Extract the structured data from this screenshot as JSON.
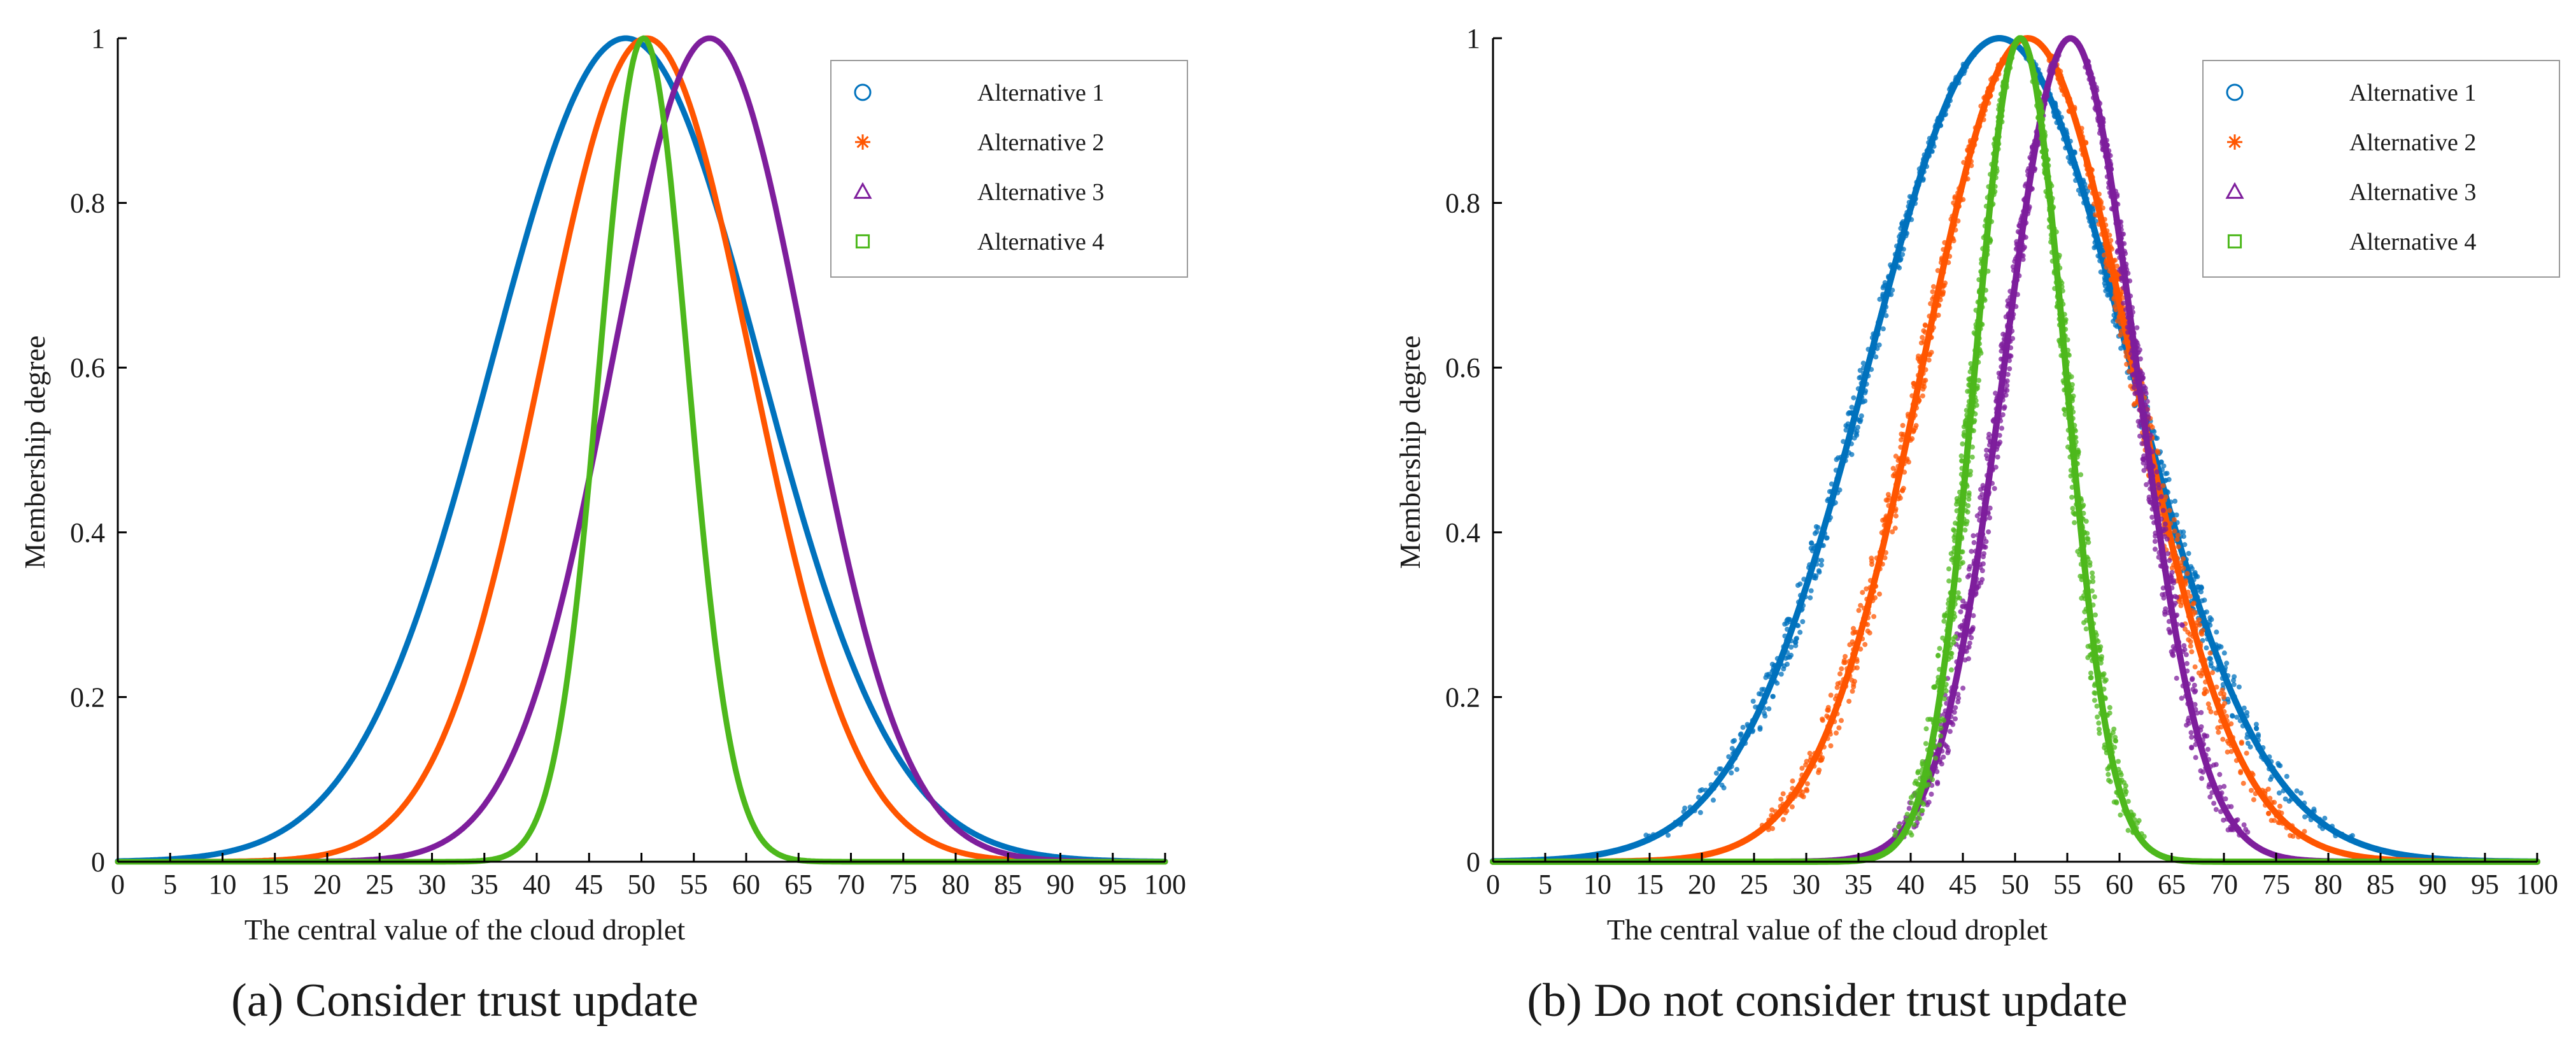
{
  "chart_data": [
    {
      "type": "scatter",
      "panel": "a",
      "caption": "(a) Consider trust update",
      "xlabel": "The central value of the cloud droplet",
      "ylabel": "Membership degree",
      "xlim": [
        0,
        100
      ],
      "ylim": [
        0,
        1
      ],
      "xticks": [
        "0",
        "5",
        "10",
        "15",
        "20",
        "25",
        "30",
        "35",
        "40",
        "45",
        "50",
        "55",
        "60",
        "65",
        "70",
        "75",
        "80",
        "85",
        "90",
        "95",
        "100"
      ],
      "yticks": [
        "0",
        "0.2",
        "0.4",
        "0.6",
        "0.8",
        "1"
      ],
      "legend_position": "top-right",
      "series": [
        {
          "name": "Alternative 1",
          "marker": "circle",
          "color": "#0072BD",
          "peak_x": 48.5,
          "spread": 12.8,
          "noise": 0
        },
        {
          "name": "Alternative 2",
          "marker": "star",
          "color": "#FF5500",
          "peak_x": 50.5,
          "spread": 10.0,
          "noise": 0
        },
        {
          "name": "Alternative 3",
          "marker": "triangle",
          "color": "#7E1E9C",
          "peak_x": 56.5,
          "spread": 9.3,
          "noise": 0
        },
        {
          "name": "Alternative 4",
          "marker": "square",
          "color": "#4DB81C",
          "peak_x": 50.2,
          "spread": 4.2,
          "noise": 0
        }
      ]
    },
    {
      "type": "scatter",
      "panel": "b",
      "caption": "(b) Do not consider trust update",
      "xlabel": "The central value of the cloud droplet",
      "ylabel": "Membership degree",
      "xlim": [
        0,
        100
      ],
      "ylim": [
        0,
        1
      ],
      "xticks": [
        "0",
        "5",
        "10",
        "15",
        "20",
        "25",
        "30",
        "35",
        "40",
        "45",
        "50",
        "55",
        "60",
        "65",
        "70",
        "75",
        "80",
        "85",
        "90",
        "95",
        "100"
      ],
      "yticks": [
        "0",
        "0.2",
        "0.4",
        "0.6",
        "0.8",
        "1"
      ],
      "legend_position": "top-right",
      "series": [
        {
          "name": "Alternative 1",
          "marker": "circle",
          "color": "#0072BD",
          "peak_x": 48.5,
          "spread": 12.5,
          "noise": 0.9
        },
        {
          "name": "Alternative 2",
          "marker": "star",
          "color": "#FF5500",
          "peak_x": 51.2,
          "spread": 10.0,
          "noise": 0.9
        },
        {
          "name": "Alternative 3",
          "marker": "triangle",
          "color": "#7E1E9C",
          "peak_x": 55.3,
          "spread": 6.3,
          "noise": 0.8
        },
        {
          "name": "Alternative 4",
          "marker": "square",
          "color": "#4DB81C",
          "peak_x": 50.5,
          "spread": 4.3,
          "noise": 0.7
        }
      ]
    }
  ]
}
